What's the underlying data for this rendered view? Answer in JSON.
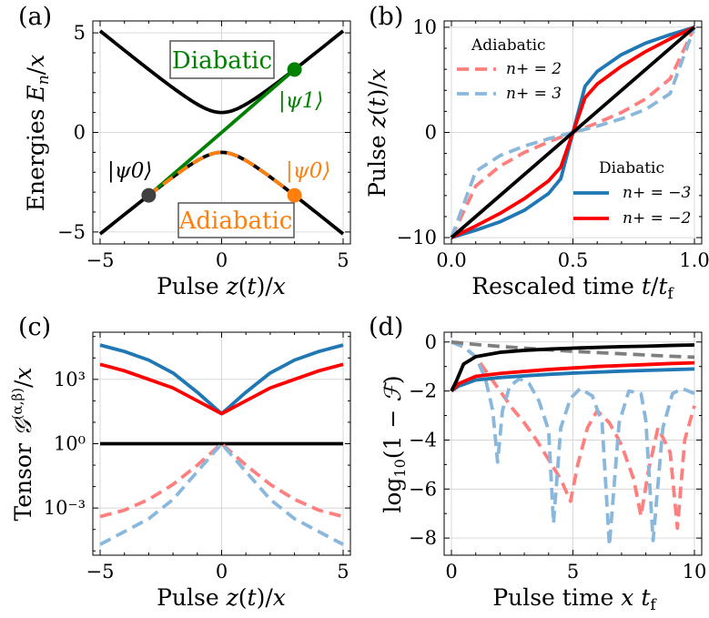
{
  "chart_data": [
    {
      "panel": "(a)",
      "type": "line",
      "xlabel": "Pulse z(t)/x",
      "ylabel": "Energies E_n/x",
      "xlim": [
        -5.3,
        5.3
      ],
      "ylim": [
        -5.6,
        5.6
      ],
      "xticks": [
        -5,
        0,
        5
      ],
      "yticks": [
        -5,
        0,
        5
      ],
      "series": [
        {
          "name": "upper level",
          "x": [
            -5,
            -4,
            -3,
            -2,
            -1,
            0,
            1,
            2,
            3,
            4,
            5
          ],
          "y": [
            5.1,
            4.12,
            3.16,
            2.24,
            1.41,
            1.0,
            1.41,
            2.24,
            3.16,
            4.12,
            5.1
          ]
        },
        {
          "name": "lower level",
          "x": [
            -5,
            -4,
            -3,
            -2,
            -1,
            0,
            1,
            2,
            3,
            4,
            5
          ],
          "y": [
            -5.1,
            -4.12,
            -3.16,
            -2.24,
            -1.41,
            -1.0,
            -1.41,
            -2.24,
            -3.16,
            -4.12,
            -5.1
          ]
        },
        {
          "name": "Diabatic path",
          "color": "#008000",
          "x": [
            -3,
            3
          ],
          "y": [
            -3.16,
            3.16
          ]
        },
        {
          "name": "Adiabatic path",
          "color": "#ff7f0e",
          "dashed": true,
          "x": [
            -3,
            -2,
            -1,
            0,
            1,
            2,
            3
          ],
          "y": [
            -3.16,
            -2.24,
            -1.41,
            -1.0,
            -1.41,
            -2.24,
            -3.16
          ]
        }
      ],
      "markers": [
        {
          "label": "|ψ0⟩ start",
          "x": -3,
          "y": -3.16,
          "color": "#404040"
        },
        {
          "label": "|ψ1⟩",
          "x": 3,
          "y": 3.16,
          "color": "#008000"
        },
        {
          "label": "|ψ0⟩ end",
          "x": 3,
          "y": -3.16,
          "color": "#ff7f0e"
        }
      ],
      "annotations": {
        "diabatic_box": "Diabatic",
        "adiabatic_box": "Adiabatic",
        "psi1": "|ψ1⟩",
        "psi0_left": "|ψ0⟩",
        "psi0_right": "|ψ0⟩"
      }
    },
    {
      "panel": "(b)",
      "type": "line",
      "xlabel": "Rescaled time t/t_f",
      "ylabel": "Pulse z(t)/x",
      "xlim": [
        -0.03,
        1.03
      ],
      "ylim": [
        -10.6,
        10.6
      ],
      "xticks": [
        "0.0",
        "0.5",
        "1.0"
      ],
      "yticks": [
        -10,
        0,
        10
      ],
      "legend_adiabatic": {
        "title": "Adiabatic",
        "entries": [
          "n+ = 2",
          "n+ = 3"
        ],
        "placement": "top-left"
      },
      "legend_diabatic": {
        "title": "Diabatic",
        "entries": [
          "n+ = −3",
          "n+ = −2"
        ],
        "placement": "bottom-right"
      },
      "series": [
        {
          "name": "n+ = 2 (adiabatic)",
          "color": "#ff7f7f",
          "dashed": true,
          "x": [
            0,
            0.1,
            0.2,
            0.3,
            0.4,
            0.5,
            0.6,
            0.7,
            0.8,
            0.9,
            1.0
          ],
          "y": [
            -10,
            -5.1,
            -3.2,
            -1.9,
            -0.9,
            0,
            0.9,
            1.9,
            3.2,
            5.1,
            10
          ]
        },
        {
          "name": "n+ = 3 (adiabatic)",
          "color": "#8ab8dc",
          "dashed": true,
          "x": [
            0,
            0.1,
            0.2,
            0.3,
            0.4,
            0.5,
            0.6,
            0.7,
            0.8,
            0.9,
            1.0
          ],
          "y": [
            -10,
            -3.7,
            -2.2,
            -1.3,
            -0.6,
            0,
            0.6,
            1.3,
            2.2,
            3.7,
            10
          ]
        },
        {
          "name": "n+ = −3 (diabatic)",
          "color": "#1f77b4",
          "x": [
            0,
            0.1,
            0.2,
            0.3,
            0.4,
            0.45,
            0.5,
            0.55,
            0.6,
            0.7,
            0.8,
            0.9,
            1.0
          ],
          "y": [
            -10,
            -9.3,
            -8.5,
            -7.4,
            -5.8,
            -4.4,
            0,
            4.4,
            5.8,
            7.4,
            8.5,
            9.3,
            10
          ]
        },
        {
          "name": "n+ = −2 (diabatic)",
          "color": "#ff0000",
          "x": [
            0,
            0.1,
            0.2,
            0.3,
            0.4,
            0.45,
            0.5,
            0.55,
            0.6,
            0.7,
            0.8,
            0.9,
            1.0
          ],
          "y": [
            -10,
            -8.9,
            -7.7,
            -6.3,
            -4.6,
            -3.3,
            0,
            3.3,
            4.6,
            6.3,
            7.7,
            8.9,
            10
          ]
        },
        {
          "name": "linear",
          "color": "#000000",
          "x": [
            0,
            1
          ],
          "y": [
            -10,
            10
          ]
        }
      ]
    },
    {
      "panel": "(c)",
      "type": "line",
      "xlabel": "Pulse z(t)/x",
      "ylabel": "Tensor G^(α,β)/x",
      "yscale": "log",
      "xlim": [
        -5.3,
        5.3
      ],
      "ylim_log10": [
        -5.2,
        5.2
      ],
      "xticks": [
        -5,
        0,
        5
      ],
      "yticks_log10": [
        -3,
        0,
        3
      ],
      "ytick_labels": [
        "10⁻³",
        "10⁰",
        "10³"
      ],
      "series": [
        {
          "name": "n+ = −3",
          "color": "#1f77b4",
          "x": [
            -5,
            -4,
            -3,
            -2,
            -1,
            0,
            1,
            2,
            3,
            4,
            5
          ],
          "log10y": [
            4.6,
            4.3,
            3.9,
            3.3,
            2.4,
            1.4,
            2.4,
            3.3,
            3.9,
            4.3,
            4.6
          ]
        },
        {
          "name": "n+ = −2",
          "color": "#ff0000",
          "x": [
            -5,
            -4,
            -3,
            -2,
            -1,
            0,
            1,
            2,
            3,
            4,
            5
          ],
          "log10y": [
            3.7,
            3.4,
            3.0,
            2.6,
            2.0,
            1.4,
            2.0,
            2.6,
            3.0,
            3.4,
            3.7
          ]
        },
        {
          "name": "constant",
          "color": "#000000",
          "x": [
            -5,
            5
          ],
          "log10y": [
            0,
            0
          ]
        },
        {
          "name": "n+ = 2",
          "color": "#ff7f7f",
          "dashed": true,
          "x": [
            -5,
            -4,
            -3,
            -2,
            -1,
            0,
            1,
            2,
            3,
            4,
            5
          ],
          "log10y": [
            -3.4,
            -3.1,
            -2.6,
            -1.9,
            -1.0,
            0,
            -1.0,
            -1.9,
            -2.6,
            -3.1,
            -3.4
          ]
        },
        {
          "name": "n+ = 3",
          "color": "#8ab8dc",
          "dashed": true,
          "x": [
            -5,
            -4,
            -3,
            -2,
            -1,
            0,
            1,
            2,
            3,
            4,
            5
          ],
          "log10y": [
            -4.7,
            -4.1,
            -3.5,
            -2.6,
            -1.3,
            0,
            -1.3,
            -2.6,
            -3.5,
            -4.1,
            -4.7
          ]
        }
      ]
    },
    {
      "panel": "(d)",
      "type": "line",
      "xlabel": "Pulse time x t_f",
      "ylabel": "log10(1 − F)",
      "xlim": [
        -0.3,
        10.3
      ],
      "ylim": [
        -8.7,
        0.4
      ],
      "xticks": [
        0,
        5,
        10
      ],
      "yticks": [
        0,
        -2,
        -4,
        -6,
        -8
      ],
      "series": [
        {
          "name": "grey dashed",
          "color": "#7f7f7f",
          "dashed": true,
          "x": [
            0,
            1,
            2,
            3,
            4,
            5,
            6,
            7,
            8,
            9,
            10
          ],
          "y": [
            0,
            -0.1,
            -0.18,
            -0.25,
            -0.32,
            -0.38,
            -0.43,
            -0.48,
            -0.53,
            -0.58,
            -0.62
          ]
        },
        {
          "name": "black",
          "color": "#000000",
          "x": [
            0,
            0.2,
            0.5,
            1,
            2,
            3,
            4,
            5,
            6,
            7,
            8,
            9,
            10
          ],
          "y": [
            -2,
            -1.6,
            -0.9,
            -0.6,
            -0.42,
            -0.34,
            -0.29,
            -0.25,
            -0.22,
            -0.19,
            -0.17,
            -0.14,
            -0.12
          ]
        },
        {
          "name": "red",
          "color": "#ff0000",
          "x": [
            0,
            0.3,
            1,
            2,
            3,
            4,
            5,
            6,
            7,
            8,
            9,
            10
          ],
          "y": [
            -2,
            -1.7,
            -1.4,
            -1.28,
            -1.2,
            -1.12,
            -1.06,
            -1.0,
            -0.96,
            -0.92,
            -0.88,
            -0.85
          ]
        },
        {
          "name": "blue",
          "color": "#1f77b4",
          "x": [
            0,
            0.3,
            1,
            2,
            3,
            4,
            5,
            6,
            7,
            8,
            9,
            10
          ],
          "y": [
            -2,
            -1.8,
            -1.55,
            -1.45,
            -1.38,
            -1.32,
            -1.27,
            -1.23,
            -1.19,
            -1.16,
            -1.13,
            -1.1
          ]
        },
        {
          "name": "n+ = 2 (adiabatic)",
          "color": "#ff7f7f",
          "dashed": true,
          "x": [
            0,
            0.5,
            1,
            1.5,
            2,
            2.5,
            3,
            3.5,
            4,
            4.5,
            4.9,
            5.2,
            5.6,
            6,
            6.5,
            7,
            7.5,
            7.8,
            8.1,
            8.5,
            9,
            9.3,
            9.6,
            10
          ],
          "y": [
            0,
            -0.2,
            -0.6,
            -1.3,
            -2,
            -2.7,
            -3.3,
            -4.0,
            -4.8,
            -5.6,
            -6.5,
            -5.0,
            -3.5,
            -2.8,
            -3.3,
            -4.2,
            -5.6,
            -7.1,
            -5.3,
            -3.5,
            -4.5,
            -7.6,
            -4.0,
            -2.6
          ]
        },
        {
          "name": "n+ = 3 (adiabatic)",
          "color": "#8ab8dc",
          "dashed": true,
          "x": [
            0,
            0.5,
            1,
            1.4,
            1.7,
            1.9,
            2.1,
            2.4,
            2.8,
            3.2,
            3.6,
            4.0,
            4.2,
            4.5,
            4.9,
            5.3,
            5.8,
            6.2,
            6.5,
            6.9,
            7.3,
            7.8,
            8.0,
            8.3,
            8.7,
            9.1,
            9.5,
            10
          ],
          "y": [
            0,
            -0.2,
            -0.6,
            -1.5,
            -2.8,
            -4.9,
            -2.8,
            -1.8,
            -1.5,
            -1.7,
            -2.4,
            -3.6,
            -7.4,
            -3.5,
            -2.3,
            -1.9,
            -2.2,
            -3.3,
            -8.3,
            -3.3,
            -2.0,
            -2.1,
            -3.2,
            -8.1,
            -3.5,
            -2.1,
            -1.9,
            -2.1
          ]
        }
      ]
    }
  ],
  "labels": {
    "panel_a": "(a)",
    "panel_b": "(b)",
    "panel_c": "(c)",
    "panel_d": "(d)",
    "a_xlabel": "Pulse z(t)/x",
    "a_ylabel": "Energies E_n/x",
    "b_xlabel": "Rescaled time t/t_f",
    "b_ylabel": "Pulse z(t)/x",
    "c_xlabel": "Pulse z(t)/x",
    "c_ylabel": "Tensor G^(α,β)/x",
    "d_xlabel": "Pulse time x t_f",
    "d_ylabel": "log10(1 − F)"
  }
}
